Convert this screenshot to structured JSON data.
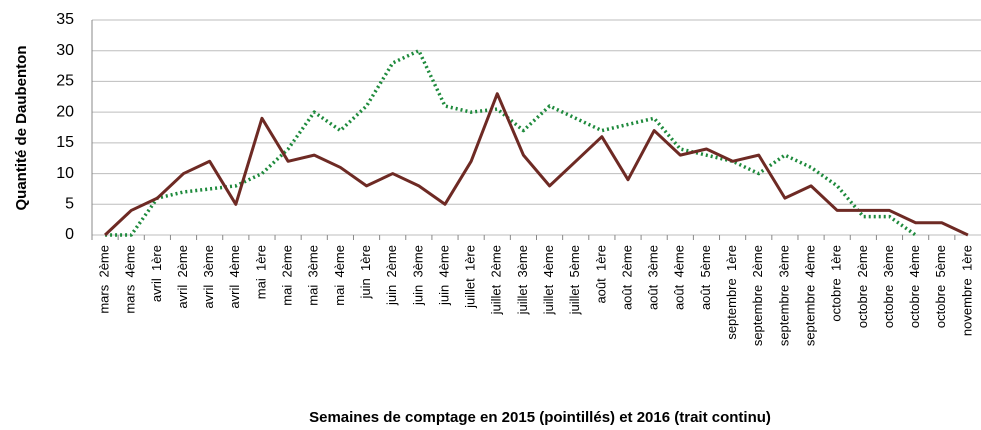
{
  "chart_data": {
    "type": "line",
    "y_label": "Quantité de Daubenton",
    "x_label": "Semaines de comptage en 2015 (pointillés) et 2016 (trait continu)",
    "categories": [
      "mars  2ème",
      "mars  4ème",
      "avril  1ère",
      "avril  2ème",
      "avril  3ème",
      "avril  4ème",
      "mai  1ère",
      "mai  2ème",
      "mai  3ème",
      "mai  4ème",
      "juin  1ère",
      "juin  2ème",
      "juin  3ème",
      "juin  4ème",
      "juillet  1ère",
      "juillet  2ème",
      "juillet  3ème",
      "juillet  4ème",
      "juillet  5ème",
      "août  1ère",
      "août  2ème",
      "août  3ème",
      "août  4ème",
      "août  5ème",
      "septembre  1ère",
      "septembre  2ème",
      "septembre  3ème",
      "septembre  4ème",
      "octobre  1ère",
      "octobre  2ème",
      "octobre  3ème",
      "octobre  4ème",
      "octobre  5ème",
      "novembre  1ère"
    ],
    "series": [
      {
        "color": "#1e8a3c",
        "dashed": true,
        "values": [
          0,
          0,
          6,
          7,
          7.5,
          8,
          10,
          14,
          20,
          17,
          21,
          28,
          30,
          21,
          20,
          20.5,
          17,
          21,
          19,
          17,
          18,
          19,
          14,
          13,
          12,
          10,
          13,
          11,
          8,
          3,
          3,
          0,
          null,
          null
        ]
      },
      {
        "color": "#6e2a24",
        "dashed": false,
        "values": [
          0,
          4,
          6,
          10,
          12,
          5,
          19,
          12,
          13,
          11,
          8,
          10,
          8,
          5,
          12,
          23,
          13,
          8,
          12,
          16,
          9,
          17,
          13,
          14,
          12,
          13,
          6,
          8,
          4,
          4,
          4,
          2,
          2,
          0
        ]
      }
    ],
    "ylim": [
      0,
      35
    ],
    "yticks": [
      0,
      5,
      10,
      15,
      20,
      25,
      30,
      35
    ],
    "grid": true
  }
}
